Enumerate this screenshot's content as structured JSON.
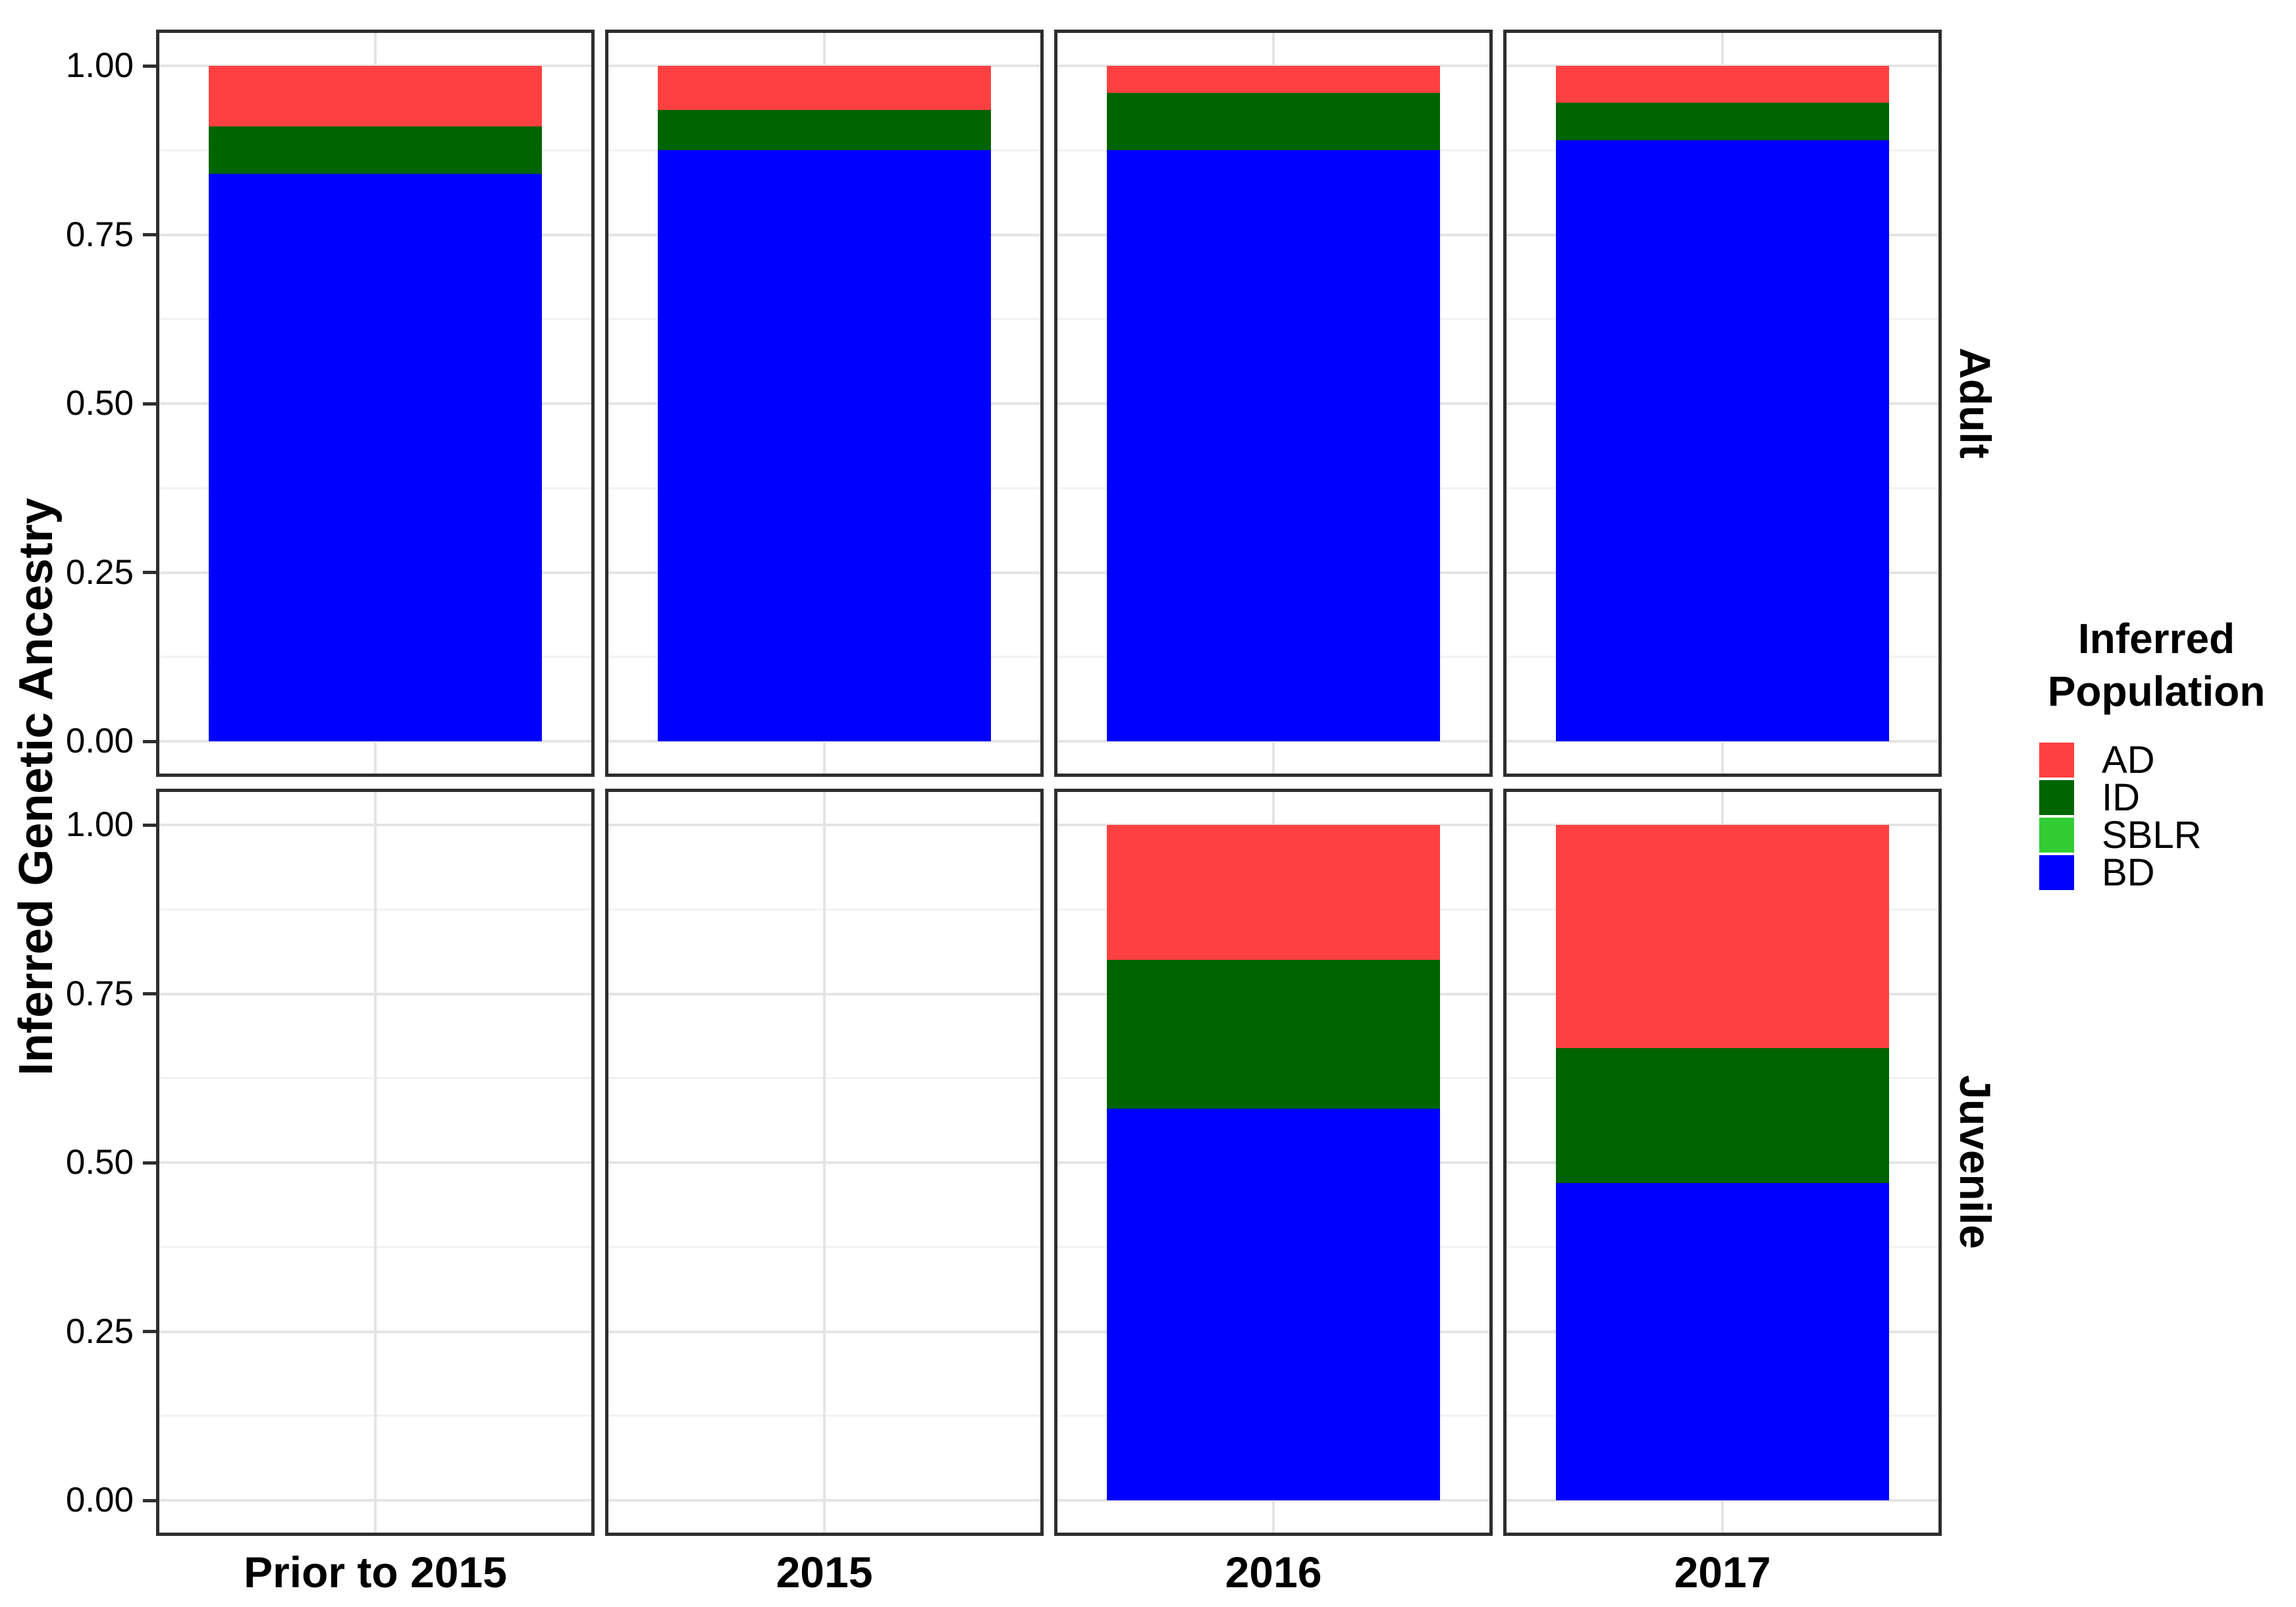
{
  "figure": {
    "y_axis_title": "Inferred Genetic Ancestry",
    "y_tick_labels": [
      "1.00",
      "0.75",
      "0.50",
      "0.25",
      "0.00"
    ],
    "x_labels": [
      "Prior to 2015",
      "2015",
      "2016",
      "2017"
    ],
    "row_labels": [
      "Adult",
      "Juvenile"
    ]
  },
  "legend": {
    "title_line1": "Inferred",
    "title_line2": "Population",
    "items": [
      {
        "label": "AD",
        "color": "#ff4040"
      },
      {
        "label": "ID",
        "color": "#006400"
      },
      {
        "label": "SBLR",
        "color": "#32cd32"
      },
      {
        "label": "BD",
        "color": "#0000ff"
      }
    ]
  },
  "chart_data": {
    "type": "bar",
    "stacked": true,
    "normalized": true,
    "title": "",
    "xlabel": "",
    "ylabel": "Inferred Genetic Ancestry",
    "ylim": [
      0,
      1
    ],
    "yticks": [
      0,
      0.25,
      0.5,
      0.75,
      1.0
    ],
    "ytick_labels": [
      "0.00",
      "0.25",
      "0.50",
      "0.75",
      "1.00"
    ],
    "grid": true,
    "legend_title": "Inferred Population",
    "legend_position": "right",
    "facet_rows": [
      "Adult",
      "Juvenile"
    ],
    "categories": [
      "Prior to 2015",
      "2015",
      "2016",
      "2017"
    ],
    "stack_order_bottom_to_top": [
      "BD",
      "ID",
      "SBLR",
      "AD"
    ],
    "colors": {
      "AD": "#ff4040",
      "ID": "#006400",
      "SBLR": "#32cd32",
      "BD": "#0000ff"
    },
    "values": {
      "Adult": {
        "Prior to 2015": {
          "BD": 0.84,
          "ID": 0.07,
          "SBLR": 0,
          "AD": 0.09
        },
        "2015": {
          "BD": 0.875,
          "ID": 0.06,
          "SBLR": 0,
          "AD": 0.065
        },
        "2016": {
          "BD": 0.875,
          "ID": 0.085,
          "SBLR": 0,
          "AD": 0.04
        },
        "2017": {
          "BD": 0.89,
          "ID": 0.055,
          "SBLR": 0,
          "AD": 0.055
        }
      },
      "Juvenile": {
        "Prior to 2015": null,
        "2015": null,
        "2016": {
          "BD": 0.58,
          "ID": 0.22,
          "SBLR": 0,
          "AD": 0.2
        },
        "2017": {
          "BD": 0.47,
          "ID": 0.2,
          "SBLR": 0,
          "AD": 0.33
        }
      }
    }
  }
}
